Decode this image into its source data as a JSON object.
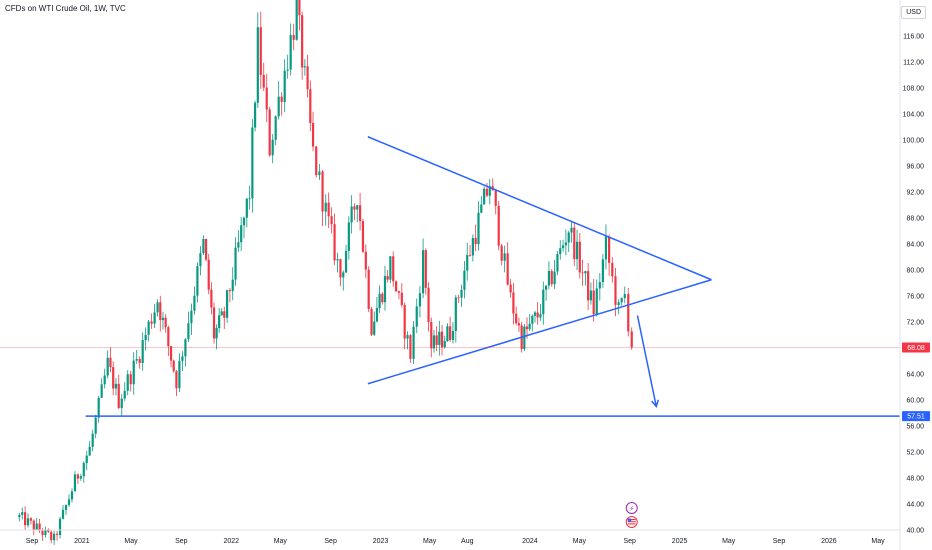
{
  "header": {
    "title": "CFDs on WTI Crude Oil, 1W, TVC",
    "currency": "USD"
  },
  "chart_data": {
    "type": "candlestick",
    "title": "CFDs on WTI Crude Oil, 1W, TVC",
    "timeframe": "1W",
    "currency": "USD",
    "ylim": [
      40,
      120
    ],
    "yticks": [
      40,
      44,
      48,
      52,
      56,
      60,
      64,
      68,
      72,
      76,
      80,
      84,
      88,
      92,
      96,
      100,
      104,
      108,
      112,
      116
    ],
    "xtick_labels": [
      "Sep",
      "2021",
      "May",
      "Sep",
      "2022",
      "May",
      "Sep",
      "2023",
      "May",
      "Aug",
      "2024",
      "May",
      "Sep",
      "2025",
      "May",
      "Sep",
      "2026",
      "May"
    ],
    "xtick_dates": [
      "2020-09-01",
      "2021-01-01",
      "2021-05-01",
      "2021-09-01",
      "2022-01-01",
      "2022-05-01",
      "2022-09-01",
      "2023-01-01",
      "2023-05-01",
      "2023-08-01",
      "2024-01-01",
      "2024-05-01",
      "2024-09-01",
      "2025-01-01",
      "2025-05-01",
      "2025-09-01",
      "2026-01-01",
      "2026-05-01"
    ],
    "price_path": [
      {
        "date": "2020-08-01",
        "close": 42
      },
      {
        "date": "2020-10-25",
        "close": 38.5
      },
      {
        "date": "2020-12-15",
        "close": 47.5
      },
      {
        "date": "2021-01-20",
        "close": 52.5
      },
      {
        "date": "2021-03-05",
        "close": 65.5
      },
      {
        "date": "2021-04-01",
        "close": 60
      },
      {
        "date": "2021-05-15",
        "close": 66
      },
      {
        "date": "2021-07-05",
        "close": 75.5
      },
      {
        "date": "2021-08-20",
        "close": 63
      },
      {
        "date": "2021-10-25",
        "close": 84
      },
      {
        "date": "2021-11-20",
        "close": 70
      },
      {
        "date": "2021-12-15",
        "close": 73
      },
      {
        "date": "2022-02-15",
        "close": 92
      },
      {
        "date": "2022-03-07",
        "close": 115
      },
      {
        "date": "2022-04-05",
        "close": 99
      },
      {
        "date": "2022-06-10",
        "close": 120
      },
      {
        "date": "2022-07-20",
        "close": 98
      },
      {
        "date": "2022-08-20",
        "close": 89
      },
      {
        "date": "2022-09-25",
        "close": 79
      },
      {
        "date": "2022-11-05",
        "close": 92
      },
      {
        "date": "2022-12-10",
        "close": 71.5
      },
      {
        "date": "2023-01-25",
        "close": 81
      },
      {
        "date": "2023-03-15",
        "close": 67
      },
      {
        "date": "2023-04-15",
        "close": 82
      },
      {
        "date": "2023-05-05",
        "close": 68
      },
      {
        "date": "2023-06-20",
        "close": 70.5
      },
      {
        "date": "2023-07-25",
        "close": 80
      },
      {
        "date": "2023-09-25",
        "close": 93.5
      },
      {
        "date": "2023-11-15",
        "close": 75.5
      },
      {
        "date": "2023-12-12",
        "close": 69.5
      },
      {
        "date": "2024-01-20",
        "close": 73
      },
      {
        "date": "2024-04-05",
        "close": 86.5
      },
      {
        "date": "2024-06-05",
        "close": 74
      },
      {
        "date": "2024-07-05",
        "close": 83.5
      },
      {
        "date": "2024-08-05",
        "close": 73.5
      },
      {
        "date": "2024-08-20",
        "close": 76
      },
      {
        "date": "2024-09-06",
        "close": 68.08
      }
    ],
    "annotations": [
      {
        "type": "trendline",
        "name": "upper-triangle-line",
        "from": {
          "date": "2022-12-01",
          "price": 100.5
        },
        "to": {
          "date": "2025-03-20",
          "price": 78.5
        },
        "color": "#2962ff"
      },
      {
        "type": "trendline",
        "name": "lower-triangle-line",
        "from": {
          "date": "2022-12-01",
          "price": 62.5
        },
        "to": {
          "date": "2025-03-20",
          "price": 78.5
        },
        "color": "#2962ff"
      },
      {
        "type": "horizontal_line",
        "name": "support-line",
        "price": 57.51,
        "from": "2021-01-10",
        "color": "#2962ff",
        "label": "57.51"
      },
      {
        "type": "arrow",
        "name": "down-arrow",
        "from": {
          "date": "2024-09-20",
          "price": 73
        },
        "to": {
          "date": "2024-11-05",
          "price": 59
        },
        "color": "#2962ff"
      }
    ],
    "last_price": {
      "value": 68.08,
      "label": "68.08",
      "color": "#f23645"
    },
    "colors": {
      "up": "#089981",
      "down": "#f23645",
      "line": "#2962ff"
    },
    "event_icons": [
      {
        "name": "lightning-icon",
        "glyph": "⚡"
      },
      {
        "name": "us-flag-icon",
        "glyph": ""
      }
    ]
  }
}
